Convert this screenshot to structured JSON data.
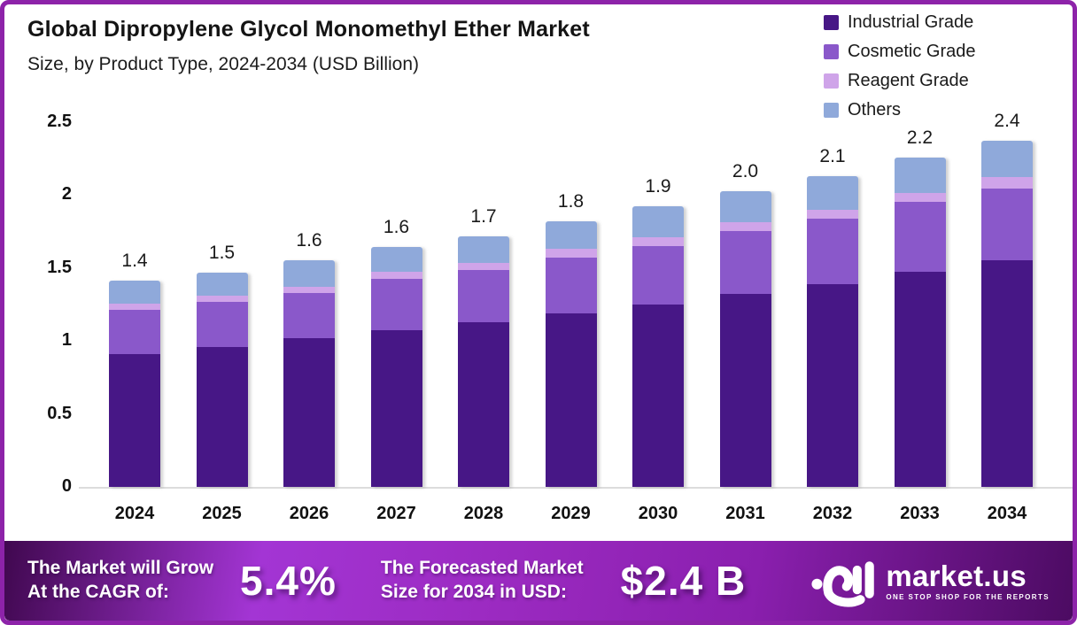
{
  "frame": {
    "border_color": "#8d23a9",
    "background": "#ffffff"
  },
  "header": {
    "title": "Global Dipropylene Glycol Monomethyl Ether Market",
    "subtitle": "Size, by Product Type, 2024-2034 (USD Billion)"
  },
  "legend": {
    "items": [
      {
        "label": "Industrial Grade",
        "color": "#471786"
      },
      {
        "label": "Cosmetic Grade",
        "color": "#8a58ca"
      },
      {
        "label": "Reagent Grade",
        "color": "#cfa4e9"
      },
      {
        "label": "Others",
        "color": "#8fa9da"
      }
    ]
  },
  "chart_data": {
    "type": "bar",
    "stacked": true,
    "title": "Global Dipropylene Glycol Monomethyl Ether Market Size, by Product Type, 2024-2034 (USD Billion)",
    "categories": [
      "2024",
      "2025",
      "2026",
      "2027",
      "2028",
      "2029",
      "2030",
      "2031",
      "2032",
      "2033",
      "2034"
    ],
    "series": [
      {
        "name": "Industrial Grade",
        "color": "#471786",
        "values": [
          0.91,
          0.96,
          1.02,
          1.07,
          1.13,
          1.19,
          1.25,
          1.32,
          1.39,
          1.47,
          1.55
        ]
      },
      {
        "name": "Cosmetic Grade",
        "color": "#8a58ca",
        "values": [
          0.3,
          0.31,
          0.31,
          0.35,
          0.36,
          0.38,
          0.4,
          0.43,
          0.45,
          0.48,
          0.49
        ]
      },
      {
        "name": "Reagent Grade",
        "color": "#cfa4e9",
        "values": [
          0.04,
          0.04,
          0.04,
          0.05,
          0.05,
          0.06,
          0.06,
          0.06,
          0.06,
          0.06,
          0.08
        ]
      },
      {
        "name": "Others",
        "color": "#8fa9da",
        "values": [
          0.16,
          0.16,
          0.18,
          0.17,
          0.18,
          0.19,
          0.21,
          0.21,
          0.23,
          0.24,
          0.25
        ]
      }
    ],
    "total_labels": [
      "1.4",
      "1.5",
      "1.6",
      "1.6",
      "1.7",
      "1.8",
      "1.9",
      "2.0",
      "2.1",
      "2.2",
      "2.4"
    ],
    "xlabel": "",
    "ylabel": "USD Billion",
    "ylim": [
      0,
      2.5
    ],
    "yticks": [
      "0",
      "0.5",
      "1",
      "1.5",
      "2",
      "2.5"
    ],
    "grid": false,
    "legend_position": "top-right"
  },
  "footer": {
    "cagr_line1": "The Market will Grow",
    "cagr_line2": "At the CAGR of:",
    "cagr_value": "5.4%",
    "forecast_line1": "The Forecasted Market",
    "forecast_line2": "Size for 2034 in USD:",
    "forecast_value": "$2.4 B",
    "brand_name": "market.us",
    "brand_tagline": "ONE STOP SHOP FOR THE REPORTS"
  }
}
